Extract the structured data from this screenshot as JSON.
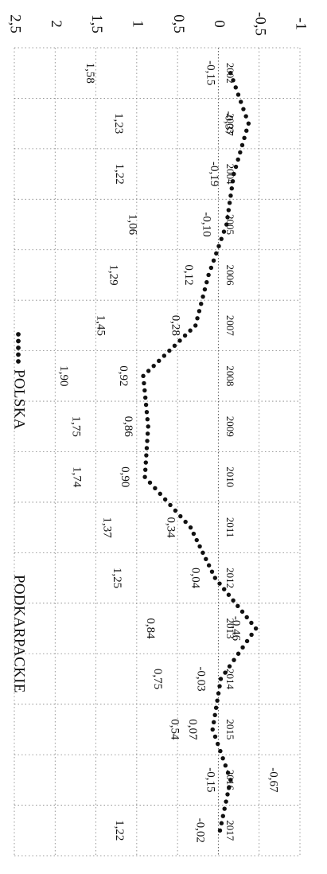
{
  "chart_data": {
    "type": "line",
    "orientation": "rotated 90 degrees clockwise",
    "title": "",
    "xlabel": "",
    "ylabel": "",
    "categories": [
      "2002",
      "2003",
      "2004",
      "2005",
      "2006",
      "2007",
      "2008",
      "2009",
      "2010",
      "2011",
      "2012",
      "2013",
      "2014",
      "2015",
      "2016",
      "2017"
    ],
    "ylim": [
      -1,
      2.5
    ],
    "y_ticks": [
      2.5,
      2,
      1.5,
      1,
      0.5,
      0,
      -0.5,
      -1
    ],
    "y_tick_labels": [
      "2,5",
      "2",
      "1,5",
      "1",
      "0,5",
      "0",
      "-0,5",
      "-1"
    ],
    "grid": true,
    "legend_position": "top",
    "series": [
      {
        "name": "POLSKA",
        "line_style": "dotted",
        "values": [
          -0.15,
          -0.37,
          -0.19,
          -0.1,
          0.12,
          0.28,
          0.92,
          0.86,
          0.9,
          0.34,
          0.04,
          -0.46,
          -0.03,
          0.07,
          -0.15,
          -0.02
        ],
        "value_labels": [
          "-0,15",
          "-0,37",
          "-0,19",
          "-0,10",
          "0,12",
          "0,28",
          "0,92",
          "0,86",
          "0,90",
          "0,34",
          "0,04",
          "-0,46",
          "-0,03",
          "0,07",
          "-0,15",
          "-0,02"
        ]
      },
      {
        "name": "PODKARPACKIE",
        "line_style": "none",
        "values": [
          1.58,
          1.23,
          1.22,
          1.06,
          1.29,
          1.45,
          1.9,
          1.75,
          1.74,
          1.37,
          1.25,
          0.84,
          0.75,
          0.54,
          -0.67,
          1.22
        ],
        "value_labels": [
          "1,58",
          "1,23",
          "1,22",
          "1,06",
          "1,29",
          "1,45",
          "1,90",
          "1,75",
          "1,74",
          "1,37",
          "1,25",
          "0,84",
          "0,75",
          "0,54",
          "-0,67",
          "1,22"
        ]
      }
    ]
  },
  "colors": {
    "ink": "#111111",
    "grid": "#6a6a6a",
    "background": "#ffffff"
  }
}
